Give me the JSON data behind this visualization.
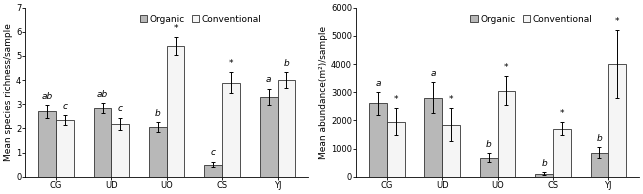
{
  "categories": [
    "CG",
    "UD",
    "UO",
    "CS",
    "YJ"
  ],
  "richness_organic": [
    2.7,
    2.85,
    2.05,
    0.5,
    3.3
  ],
  "richness_conventional": [
    2.35,
    2.2,
    5.4,
    3.9,
    4.0
  ],
  "richness_organic_err": [
    0.25,
    0.2,
    0.2,
    0.12,
    0.35
  ],
  "richness_conventional_err": [
    0.2,
    0.25,
    0.38,
    0.42,
    0.32
  ],
  "richness_ylim": [
    0,
    7
  ],
  "richness_yticks": [
    0,
    1,
    2,
    3,
    4,
    5,
    6,
    7
  ],
  "richness_ylabel": "Mean species richness/sample",
  "richness_organic_labels": [
    "ab",
    "ab",
    "b",
    "c",
    "a"
  ],
  "richness_conventional_labels": [
    "c",
    "c",
    "*",
    "*",
    "b"
  ],
  "abundance_organic": [
    2600,
    2800,
    680,
    100,
    850
  ],
  "abundance_conventional": [
    1950,
    1850,
    3050,
    1700,
    4000
  ],
  "abundance_organic_err": [
    400,
    550,
    150,
    50,
    200
  ],
  "abundance_conventional_err": [
    480,
    580,
    520,
    230,
    1200
  ],
  "abundance_ylim": [
    0,
    6000
  ],
  "abundance_yticks": [
    0,
    1000,
    2000,
    3000,
    4000,
    5000,
    6000
  ],
  "abundance_ylabel": "Mean abundance(m²)/sample",
  "abundance_organic_labels": [
    "a",
    "a",
    "b",
    "b",
    "b"
  ],
  "abundance_conventional_labels": [
    "*",
    "*",
    "*",
    "*",
    "*"
  ],
  "organic_color": "#b8b8b8",
  "conventional_color": "#f5f5f5",
  "bar_edgecolor": "#333333",
  "bar_width": 0.32,
  "legend_organic": "Organic",
  "legend_conventional": "Conventional",
  "axis_font_size": 6.5,
  "label_font_size": 6.5,
  "tick_font_size": 6.0,
  "legend_font_size": 6.5
}
